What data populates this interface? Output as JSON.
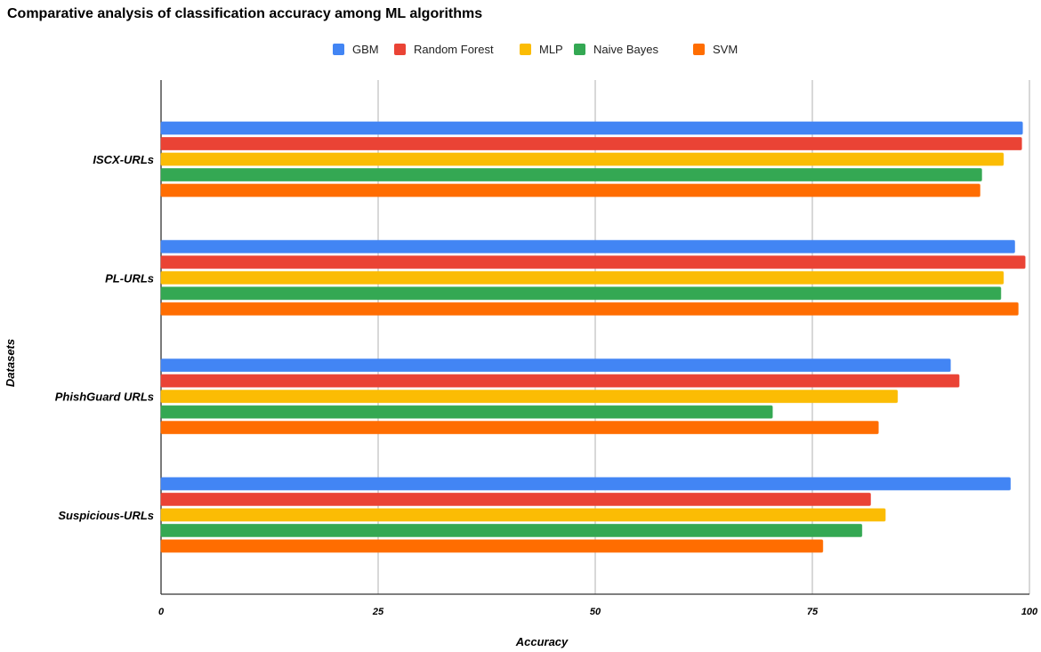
{
  "chart_data": {
    "type": "bar",
    "orientation": "horizontal",
    "title": "Comparative analysis of classification accuracy among ML algorithms",
    "xlabel": "Accuracy",
    "ylabel": "Datasets",
    "xlim": [
      0,
      100
    ],
    "xticks": [
      "0",
      "25",
      "50",
      "75",
      "100"
    ],
    "grid": true,
    "legend_position": "top",
    "categories": [
      "ISCX-URLs",
      "PL-URLs",
      "PhishGuard URLs",
      "Suspicious-URLs"
    ],
    "series": [
      {
        "name": "GBM",
        "color": "#4285f4",
        "values": [
          99.2,
          98.3,
          90.9,
          97.8
        ]
      },
      {
        "name": "Random Forest",
        "color": "#ea4335",
        "values": [
          99.1,
          99.5,
          91.9,
          81.7
        ]
      },
      {
        "name": "MLP",
        "color": "#fbbc04",
        "values": [
          97.0,
          97.0,
          84.8,
          83.4
        ]
      },
      {
        "name": "Naive Bayes",
        "color": "#34a853",
        "values": [
          94.5,
          96.7,
          70.4,
          80.7
        ]
      },
      {
        "name": "SVM",
        "color": "#ff6d01",
        "values": [
          94.3,
          98.7,
          82.6,
          76.2
        ]
      }
    ]
  }
}
